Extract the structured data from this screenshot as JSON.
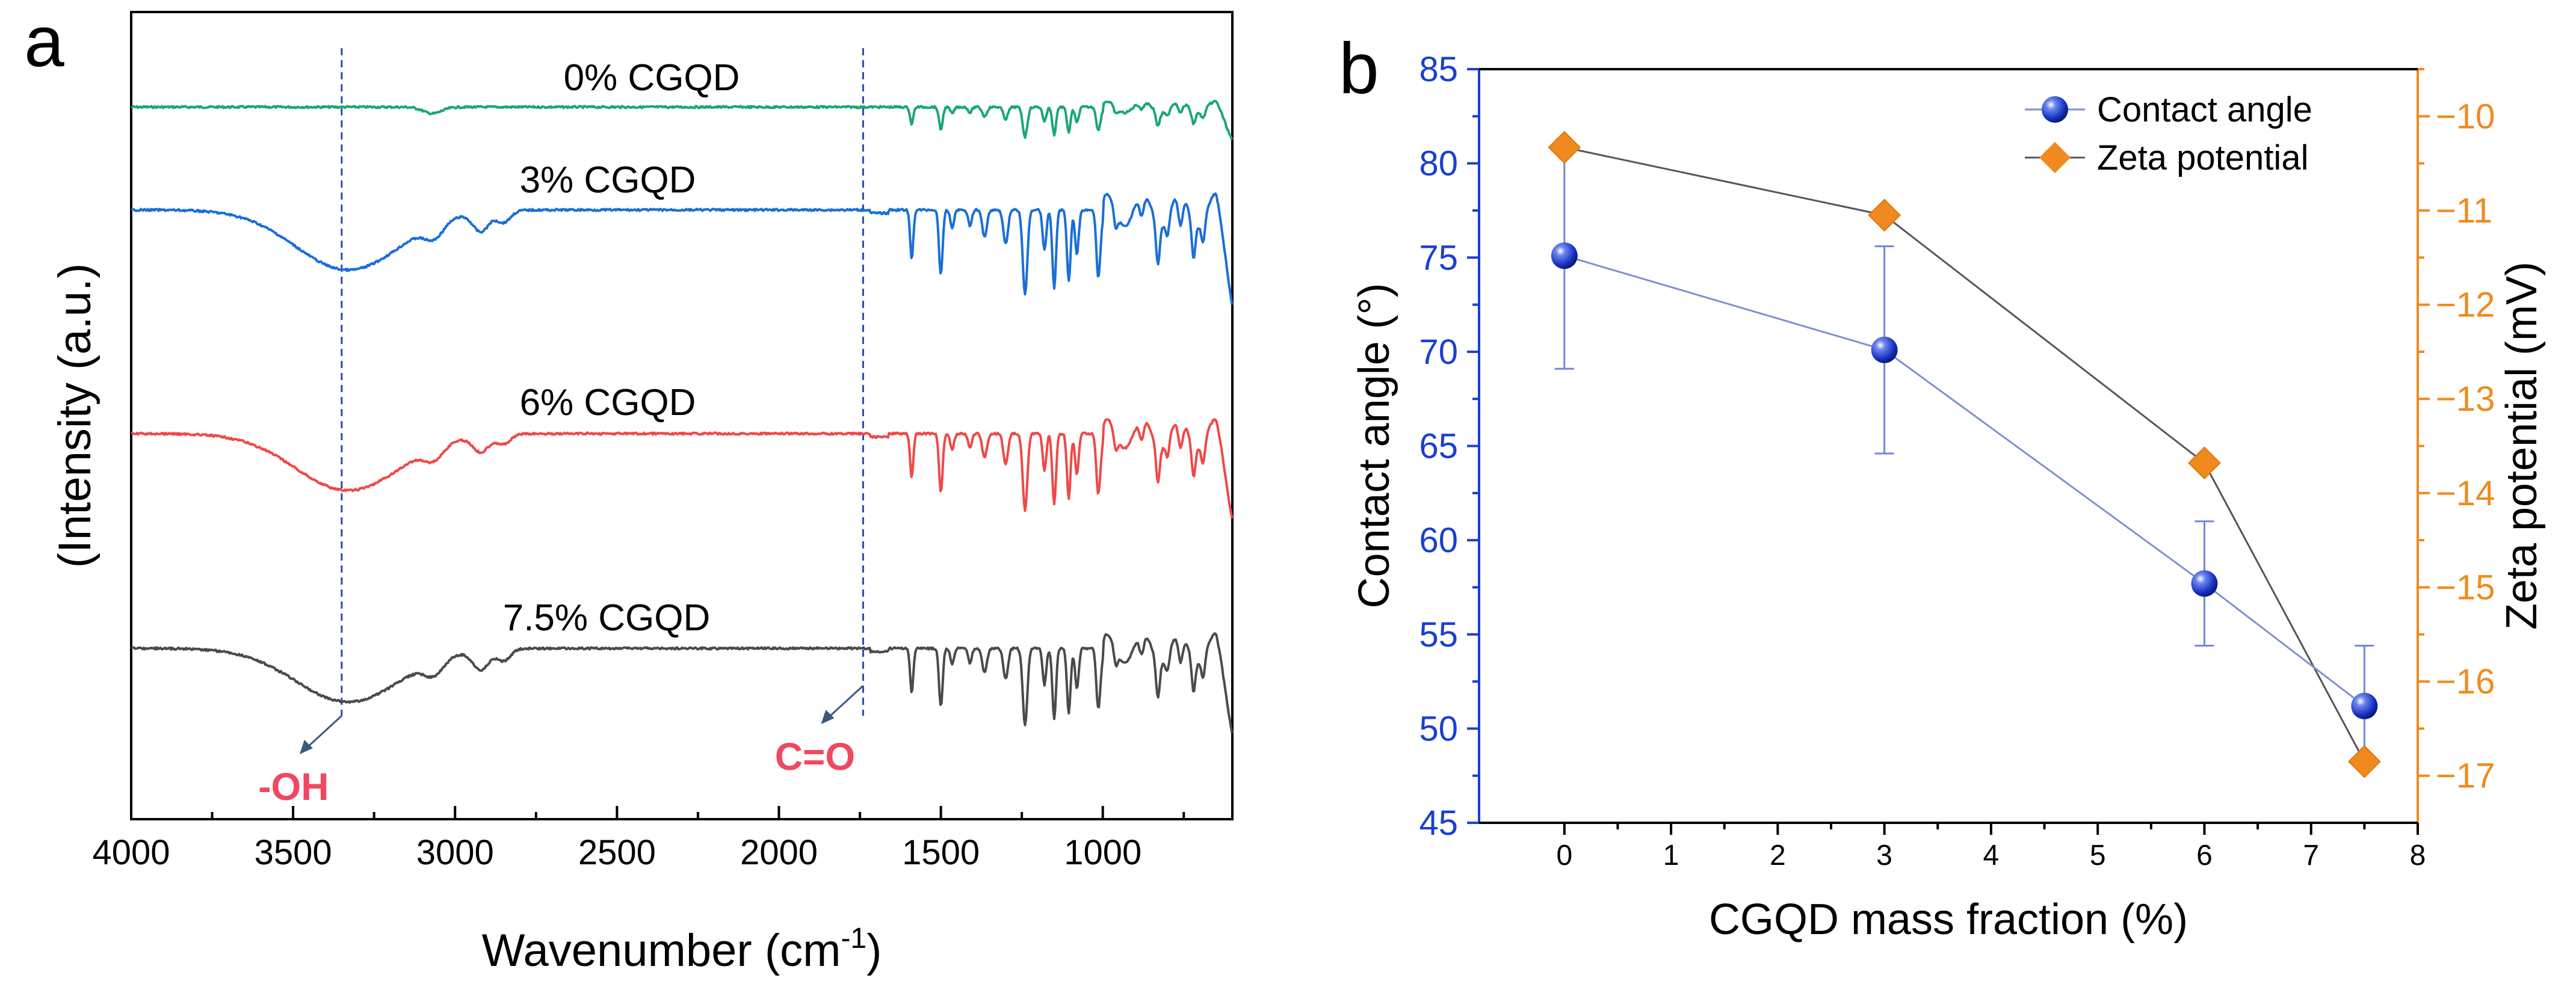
{
  "chart_data": [
    {
      "type": "line",
      "panel_label": "a",
      "title": "",
      "xlabel": "Wavenumber (cm",
      "xlabel_sup": "-1",
      "xlabel_end": ")",
      "ylabel": "(Intensity (a.u.)",
      "xlim": [
        4000,
        600
      ],
      "xticks": [
        4000,
        3500,
        3000,
        2500,
        2000,
        1500,
        1000
      ],
      "xtick_labels": [
        "4000",
        "3500",
        "3000",
        "2500",
        "2000",
        "1500",
        "1000"
      ],
      "series": [
        {
          "name": "0% CGQD",
          "color": "#1aa774",
          "baseline": 0.0,
          "oh_depth": 0,
          "ch_depth": 0
        },
        {
          "name": "3% CGQD",
          "color": "#1a6fd6",
          "baseline": 1.0,
          "oh_depth": 0.37,
          "ch_depth": 0.12
        },
        {
          "name": "6% CGQD",
          "color": "#f04848",
          "baseline": 2.0,
          "oh_depth": 0.35,
          "ch_depth": 0.1
        },
        {
          "name": "7.5% CGQD",
          "color": "#4a4a4a",
          "baseline": 3.0,
          "oh_depth": 0.33,
          "ch_depth": 0.12
        }
      ],
      "reference_lines": [
        {
          "x": 3350,
          "label": "-OH"
        },
        {
          "x": 1740,
          "label": "C=O"
        }
      ],
      "annotation_color": "#f04860"
    },
    {
      "type": "scatter",
      "panel_label": "b",
      "title": "",
      "xlabel": "CGQD mass fraction (%)",
      "ylabel_left": "Contact angle (°)",
      "ylabel_right": "Zeta potential (mV)",
      "xlim": [
        -0.8,
        8
      ],
      "xticks": [
        0,
        1,
        2,
        3,
        4,
        5,
        6,
        7,
        8
      ],
      "xtick_labels": [
        "0",
        "1",
        "2",
        "3",
        "4",
        "5",
        "6",
        "7",
        "8"
      ],
      "ylim_left": [
        45,
        85
      ],
      "yticks_left": [
        45,
        50,
        55,
        60,
        65,
        70,
        75,
        80,
        85
      ],
      "ytick_labels_left": [
        "45",
        "50",
        "55",
        "60",
        "65",
        "70",
        "75",
        "80",
        "85"
      ],
      "ylim_right": [
        -17.5,
        -9.5
      ],
      "yticks_right": [
        -10,
        -11,
        -12,
        -13,
        -14,
        -15,
        -16,
        -17
      ],
      "ytick_labels_right": [
        "−10",
        "−11",
        "−12",
        "−13",
        "−14",
        "−15",
        "−16",
        "−17"
      ],
      "left_axis_color": "#1a3fd0",
      "right_axis_color": "#f08a1e",
      "legend_position": "top-right",
      "series": [
        {
          "name": "Contact angle",
          "axis": "left",
          "marker": "sphere",
          "color": "#1a3fd0",
          "line_color": "#7f8fcf",
          "x": [
            0,
            3,
            6,
            7.5
          ],
          "y": [
            75.1,
            70.1,
            57.7,
            51.2
          ],
          "yerr": [
            6.0,
            5.5,
            3.3,
            3.2
          ]
        },
        {
          "name": "Zeta potential",
          "axis": "right",
          "marker": "diamond",
          "color": "#f08a1e",
          "line_color": "#555555",
          "x": [
            0,
            3,
            6,
            7.5
          ],
          "y": [
            -10.33,
            -11.05,
            -13.68,
            -16.85
          ]
        }
      ]
    }
  ]
}
